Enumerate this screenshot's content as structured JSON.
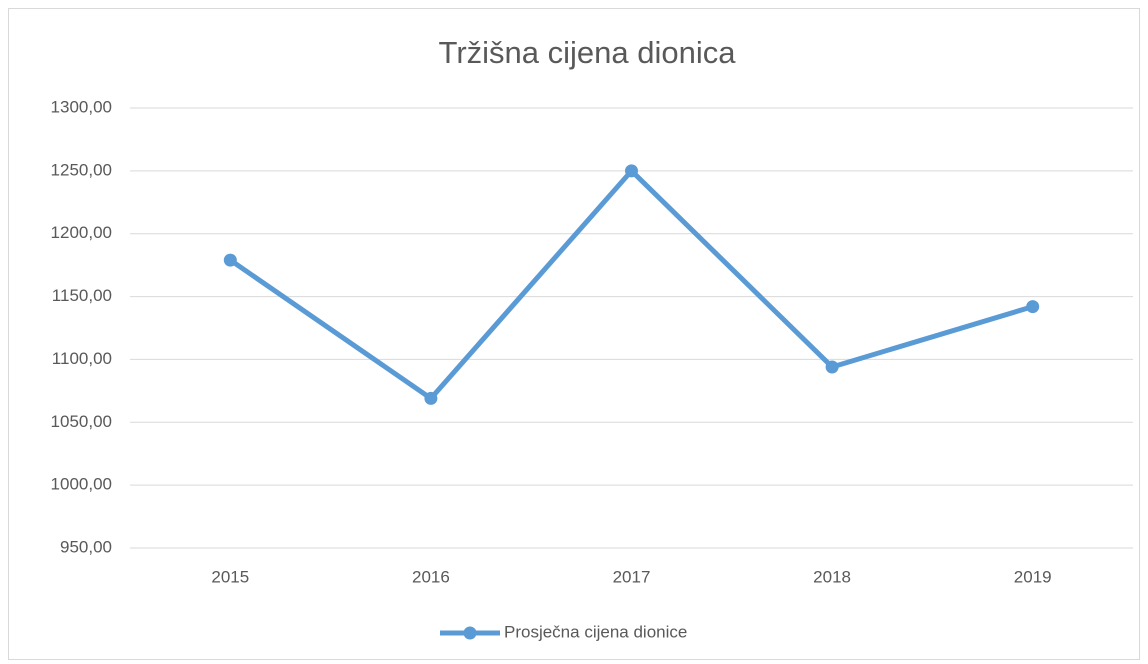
{
  "chart_data": {
    "type": "line",
    "title": "Tržišna cijena dionica",
    "categories": [
      "2015",
      "2016",
      "2017",
      "2018",
      "2019"
    ],
    "series": [
      {
        "name": "Prosječna cijena dionice",
        "color": "#5b9bd5",
        "values": [
          1179,
          1069,
          1250,
          1094,
          1142
        ]
      }
    ],
    "ylim": [
      950,
      1300
    ],
    "yticks": [
      {
        "value": 950,
        "label": "950,00"
      },
      {
        "value": 1000,
        "label": "1000,00"
      },
      {
        "value": 1050,
        "label": "1050,00"
      },
      {
        "value": 1100,
        "label": "1100,00"
      },
      {
        "value": 1150,
        "label": "1150,00"
      },
      {
        "value": 1200,
        "label": "1200,00"
      },
      {
        "value": 1250,
        "label": "1250,00"
      },
      {
        "value": 1300,
        "label": "1300,00"
      }
    ],
    "grid": true,
    "legend": "bottom"
  }
}
